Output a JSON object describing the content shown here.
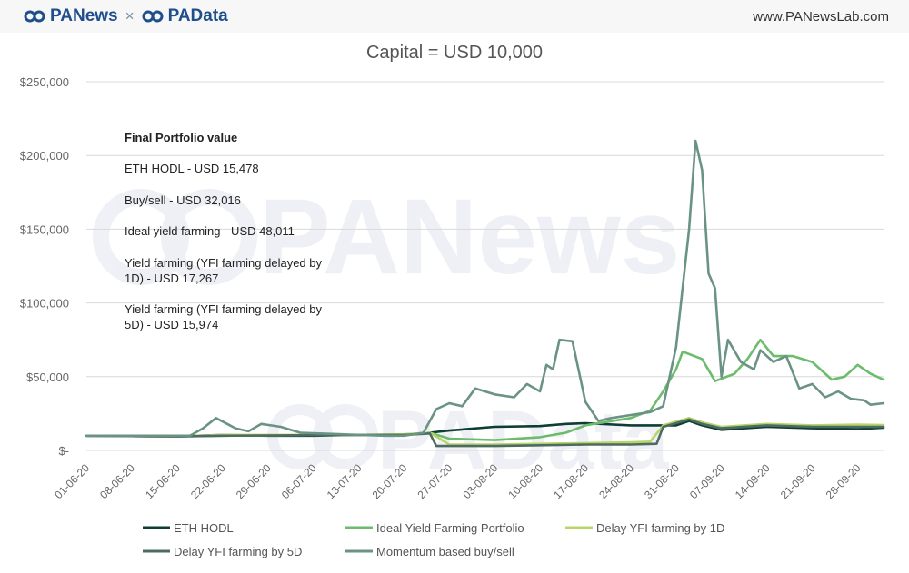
{
  "header": {
    "brand_left": "PANews",
    "separator": "×",
    "brand_right": "PAData",
    "site_url": "www.PANewsLab.com"
  },
  "watermark": {
    "top": "PANews",
    "bottom": "PAData"
  },
  "annotation": {
    "title": "Final Portfolio value",
    "lines": [
      "ETH HODL - USD 15,478",
      "Buy/sell - USD 32,016",
      "Ideal yield farming - USD 48,011",
      "Yield farming (YFI farming delayed by",
      "1D) - USD 17,267",
      "Yield farming (YFI farming delayed by",
      "5D) - USD 15,974"
    ]
  },
  "chart_data": {
    "type": "line",
    "title": "Capital = USD 10,000",
    "xlabel": "",
    "ylabel": "",
    "ylim": [
      0,
      250000
    ],
    "yticks": [
      0,
      50000,
      100000,
      150000,
      200000,
      250000
    ],
    "ytick_labels": [
      "$-",
      "$50,000",
      "$100,000",
      "$150,000",
      "$200,000",
      "$250,000"
    ],
    "xlim": [
      "01-06-20",
      "02-10-20"
    ],
    "x_tick_labels": [
      "01-06-20",
      "08-06-20",
      "15-06-20",
      "22-06-20",
      "29-06-20",
      "06-07-20",
      "13-07-20",
      "20-07-20",
      "27-07-20",
      "03-08-20",
      "10-08-20",
      "17-08-20",
      "24-08-20",
      "31-08-20",
      "07-09-20",
      "14-09-20",
      "21-09-20",
      "28-09-20"
    ],
    "grid": "horizontal",
    "legend": "bottom",
    "series": [
      {
        "name": "ETH HODL",
        "color": "#0e3d33",
        "points": [
          [
            "01-06-20",
            10000
          ],
          [
            "15-06-20",
            9500
          ],
          [
            "22-06-20",
            10500
          ],
          [
            "29-06-20",
            10000
          ],
          [
            "06-07-20",
            10000
          ],
          [
            "13-07-20",
            10500
          ],
          [
            "20-07-20",
            10500
          ],
          [
            "24-07-20",
            12000
          ],
          [
            "27-07-20",
            13500
          ],
          [
            "03-08-20",
            16000
          ],
          [
            "10-08-20",
            16500
          ],
          [
            "14-08-20",
            18000
          ],
          [
            "17-08-20",
            18500
          ],
          [
            "24-08-20",
            17000
          ],
          [
            "31-08-20",
            17000
          ],
          [
            "02-09-20",
            20000
          ],
          [
            "04-09-20",
            17000
          ],
          [
            "07-09-20",
            14000
          ],
          [
            "14-09-20",
            16000
          ],
          [
            "21-09-20",
            15000
          ],
          [
            "28-09-20",
            14500
          ],
          [
            "02-10-20",
            15478
          ]
        ]
      },
      {
        "name": "Ideal Yield Farming Portfolio",
        "color": "#6dbb6d",
        "points": [
          [
            "01-06-20",
            10000
          ],
          [
            "15-06-20",
            9500
          ],
          [
            "22-06-20",
            10000
          ],
          [
            "13-07-20",
            10500
          ],
          [
            "20-07-20",
            10500
          ],
          [
            "24-07-20",
            12000
          ],
          [
            "27-07-20",
            8000
          ],
          [
            "03-08-20",
            7000
          ],
          [
            "10-08-20",
            9000
          ],
          [
            "14-08-20",
            12000
          ],
          [
            "17-08-20",
            17000
          ],
          [
            "24-08-20",
            22000
          ],
          [
            "27-08-20",
            27000
          ],
          [
            "29-08-20",
            40000
          ],
          [
            "31-08-20",
            55000
          ],
          [
            "01-09-20",
            67000
          ],
          [
            "04-09-20",
            62000
          ],
          [
            "06-09-20",
            47000
          ],
          [
            "09-09-20",
            52000
          ],
          [
            "11-09-20",
            62000
          ],
          [
            "13-09-20",
            75000
          ],
          [
            "15-09-20",
            64000
          ],
          [
            "18-09-20",
            64000
          ],
          [
            "21-09-20",
            60000
          ],
          [
            "24-09-20",
            48000
          ],
          [
            "26-09-20",
            50000
          ],
          [
            "28-09-20",
            58000
          ],
          [
            "30-09-20",
            52000
          ],
          [
            "02-10-20",
            48011
          ]
        ]
      },
      {
        "name": "Delay YFI farming by 1D",
        "color": "#b8d56a",
        "points": [
          [
            "01-06-20",
            10000
          ],
          [
            "15-06-20",
            9500
          ],
          [
            "22-06-20",
            10500
          ],
          [
            "13-07-20",
            10500
          ],
          [
            "20-07-20",
            11000
          ],
          [
            "24-07-20",
            12000
          ],
          [
            "27-07-20",
            4000
          ],
          [
            "03-08-20",
            4000
          ],
          [
            "10-08-20",
            4500
          ],
          [
            "17-08-20",
            5000
          ],
          [
            "24-08-20",
            5500
          ],
          [
            "27-08-20",
            6000
          ],
          [
            "29-08-20",
            17000
          ],
          [
            "02-09-20",
            22000
          ],
          [
            "04-09-20",
            19000
          ],
          [
            "07-09-20",
            16000
          ],
          [
            "14-09-20",
            18000
          ],
          [
            "21-09-20",
            17000
          ],
          [
            "28-09-20",
            17500
          ],
          [
            "02-10-20",
            17267
          ]
        ]
      },
      {
        "name": "Delay YFI farming by 5D",
        "color": "#4d6b60",
        "points": [
          [
            "01-06-20",
            10000
          ],
          [
            "15-06-20",
            9500
          ],
          [
            "22-06-20",
            10000
          ],
          [
            "13-07-20",
            10500
          ],
          [
            "20-07-20",
            10500
          ],
          [
            "24-07-20",
            11500
          ],
          [
            "25-07-20",
            3000
          ],
          [
            "03-08-20",
            3000
          ],
          [
            "10-08-20",
            3500
          ],
          [
            "17-08-20",
            4000
          ],
          [
            "24-08-20",
            4000
          ],
          [
            "28-08-20",
            4500
          ],
          [
            "29-08-20",
            16000
          ],
          [
            "02-09-20",
            21000
          ],
          [
            "04-09-20",
            18000
          ],
          [
            "07-09-20",
            15000
          ],
          [
            "14-09-20",
            17000
          ],
          [
            "21-09-20",
            16000
          ],
          [
            "28-09-20",
            16000
          ],
          [
            "02-10-20",
            15974
          ]
        ]
      },
      {
        "name": "Momentum based buy/sell",
        "color": "#6a9386",
        "points": [
          [
            "01-06-20",
            10000
          ],
          [
            "10-06-20",
            10000
          ],
          [
            "17-06-20",
            10000
          ],
          [
            "19-06-20",
            15000
          ],
          [
            "21-06-20",
            22000
          ],
          [
            "24-06-20",
            15000
          ],
          [
            "26-06-20",
            13000
          ],
          [
            "28-06-20",
            18000
          ],
          [
            "01-07-20",
            16000
          ],
          [
            "04-07-20",
            12000
          ],
          [
            "10-07-20",
            11000
          ],
          [
            "17-07-20",
            10000
          ],
          [
            "20-07-20",
            10000
          ],
          [
            "23-07-20",
            12000
          ],
          [
            "25-07-20",
            28000
          ],
          [
            "27-07-20",
            32000
          ],
          [
            "29-07-20",
            30000
          ],
          [
            "31-07-20",
            42000
          ],
          [
            "03-08-20",
            38000
          ],
          [
            "06-08-20",
            36000
          ],
          [
            "08-08-20",
            45000
          ],
          [
            "10-08-20",
            40000
          ],
          [
            "11-08-20",
            58000
          ],
          [
            "12-08-20",
            55000
          ],
          [
            "13-08-20",
            75000
          ],
          [
            "15-08-20",
            74000
          ],
          [
            "17-08-20",
            33000
          ],
          [
            "19-08-20",
            20000
          ],
          [
            "21-08-20",
            22000
          ],
          [
            "24-08-20",
            24000
          ],
          [
            "27-08-20",
            26000
          ],
          [
            "29-08-20",
            30000
          ],
          [
            "31-08-20",
            70000
          ],
          [
            "02-09-20",
            150000
          ],
          [
            "03-09-20",
            210000
          ],
          [
            "04-09-20",
            190000
          ],
          [
            "05-09-20",
            120000
          ],
          [
            "06-09-20",
            110000
          ],
          [
            "07-09-20",
            50000
          ],
          [
            "08-09-20",
            75000
          ],
          [
            "10-09-20",
            60000
          ],
          [
            "12-09-20",
            55000
          ],
          [
            "13-09-20",
            68000
          ],
          [
            "15-09-20",
            60000
          ],
          [
            "17-09-20",
            64000
          ],
          [
            "19-09-20",
            42000
          ],
          [
            "21-09-20",
            45000
          ],
          [
            "23-09-20",
            36000
          ],
          [
            "25-09-20",
            40000
          ],
          [
            "27-09-20",
            35000
          ],
          [
            "29-09-20",
            34000
          ],
          [
            "30-09-20",
            31000
          ],
          [
            "02-10-20",
            32016
          ]
        ]
      }
    ]
  }
}
